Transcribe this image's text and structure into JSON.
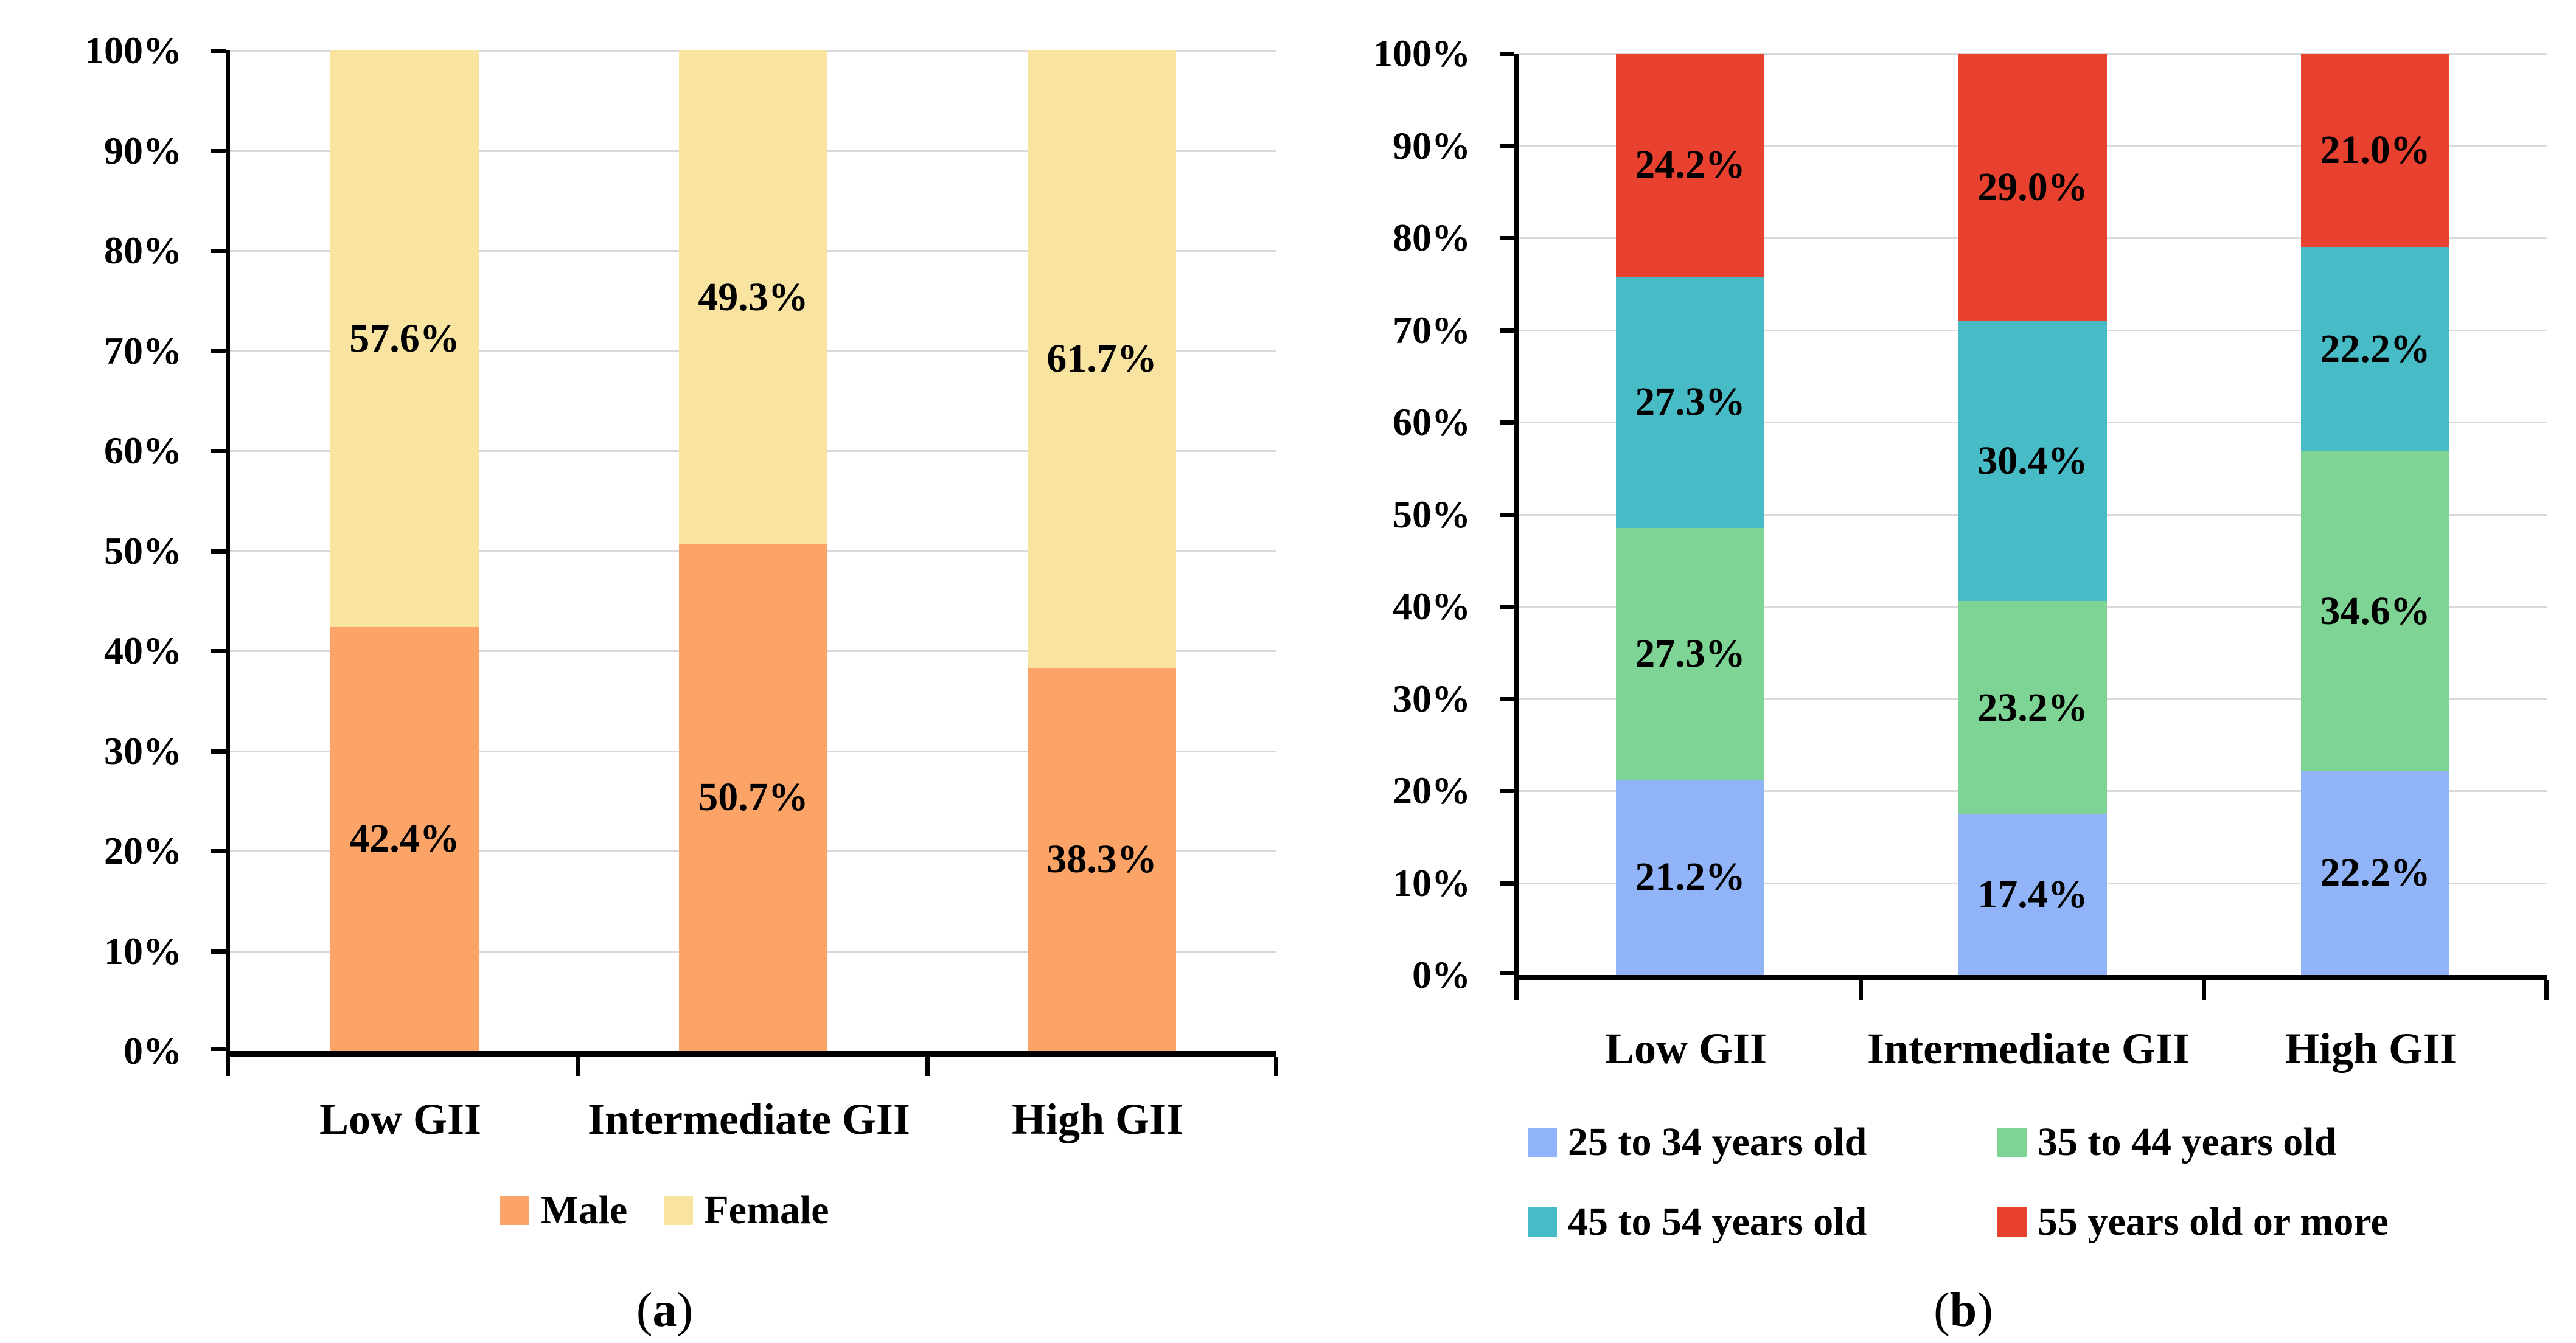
{
  "colors": {
    "background": "#FFFFFF",
    "gridline": "#D9D9D9",
    "axis": "#000000",
    "label_text": "#000000"
  },
  "chart_data": [
    {
      "id": "a",
      "type": "bar",
      "stacked": true,
      "units": "percent",
      "title": "",
      "caption": "(a)",
      "categories": [
        "Low GII",
        "Intermediate GII",
        "High GII"
      ],
      "series": [
        {
          "name": "Male",
          "color": "#FCA467",
          "values": [
            42.4,
            50.7,
            38.3
          ],
          "data_labels": [
            "42.4%",
            "50.7%",
            "38.3%"
          ]
        },
        {
          "name": "Female",
          "color": "#F8E3A1",
          "values": [
            57.6,
            49.3,
            61.7
          ],
          "data_labels": [
            "57.6%",
            "49.3%",
            "61.7%"
          ]
        }
      ],
      "y_ticks": [
        "100%",
        "90%",
        "80%",
        "70%",
        "60%",
        "50%",
        "40%",
        "30%",
        "20%",
        "10%",
        "0%"
      ],
      "ylim": [
        0,
        100
      ],
      "grid": true,
      "legend_position": "bottom"
    },
    {
      "id": "b",
      "type": "bar",
      "stacked": true,
      "units": "percent",
      "title": "",
      "caption": "(b)",
      "categories": [
        "Low GII",
        "Intermediate GII",
        "High GII"
      ],
      "series": [
        {
          "name": "25 to 34 years old",
          "color": "#90B4F7",
          "values": [
            21.2,
            17.4,
            22.2
          ],
          "data_labels": [
            "21.2%",
            "17.4%",
            "22.2%"
          ]
        },
        {
          "name": "35 to 44 years old",
          "color": "#7ED495",
          "values": [
            27.3,
            23.2,
            34.6
          ],
          "data_labels": [
            "27.3%",
            "23.2%",
            "34.6%"
          ]
        },
        {
          "name": "45 to 54 years old",
          "color": "#48BCC6",
          "values": [
            27.3,
            30.4,
            22.2
          ],
          "data_labels": [
            "27.3%",
            "30.4%",
            "22.2%"
          ]
        },
        {
          "name": "55 years old or more",
          "color": "#E8412F",
          "values": [
            24.2,
            29.0,
            21.0
          ],
          "data_labels": [
            "24.2%",
            "29.0%",
            "21.0%"
          ]
        }
      ],
      "y_ticks": [
        "100%",
        "90%",
        "80%",
        "70%",
        "60%",
        "50%",
        "40%",
        "30%",
        "20%",
        "10%",
        "0%"
      ],
      "ylim": [
        0,
        100
      ],
      "grid": true,
      "legend_position": "bottom"
    }
  ]
}
